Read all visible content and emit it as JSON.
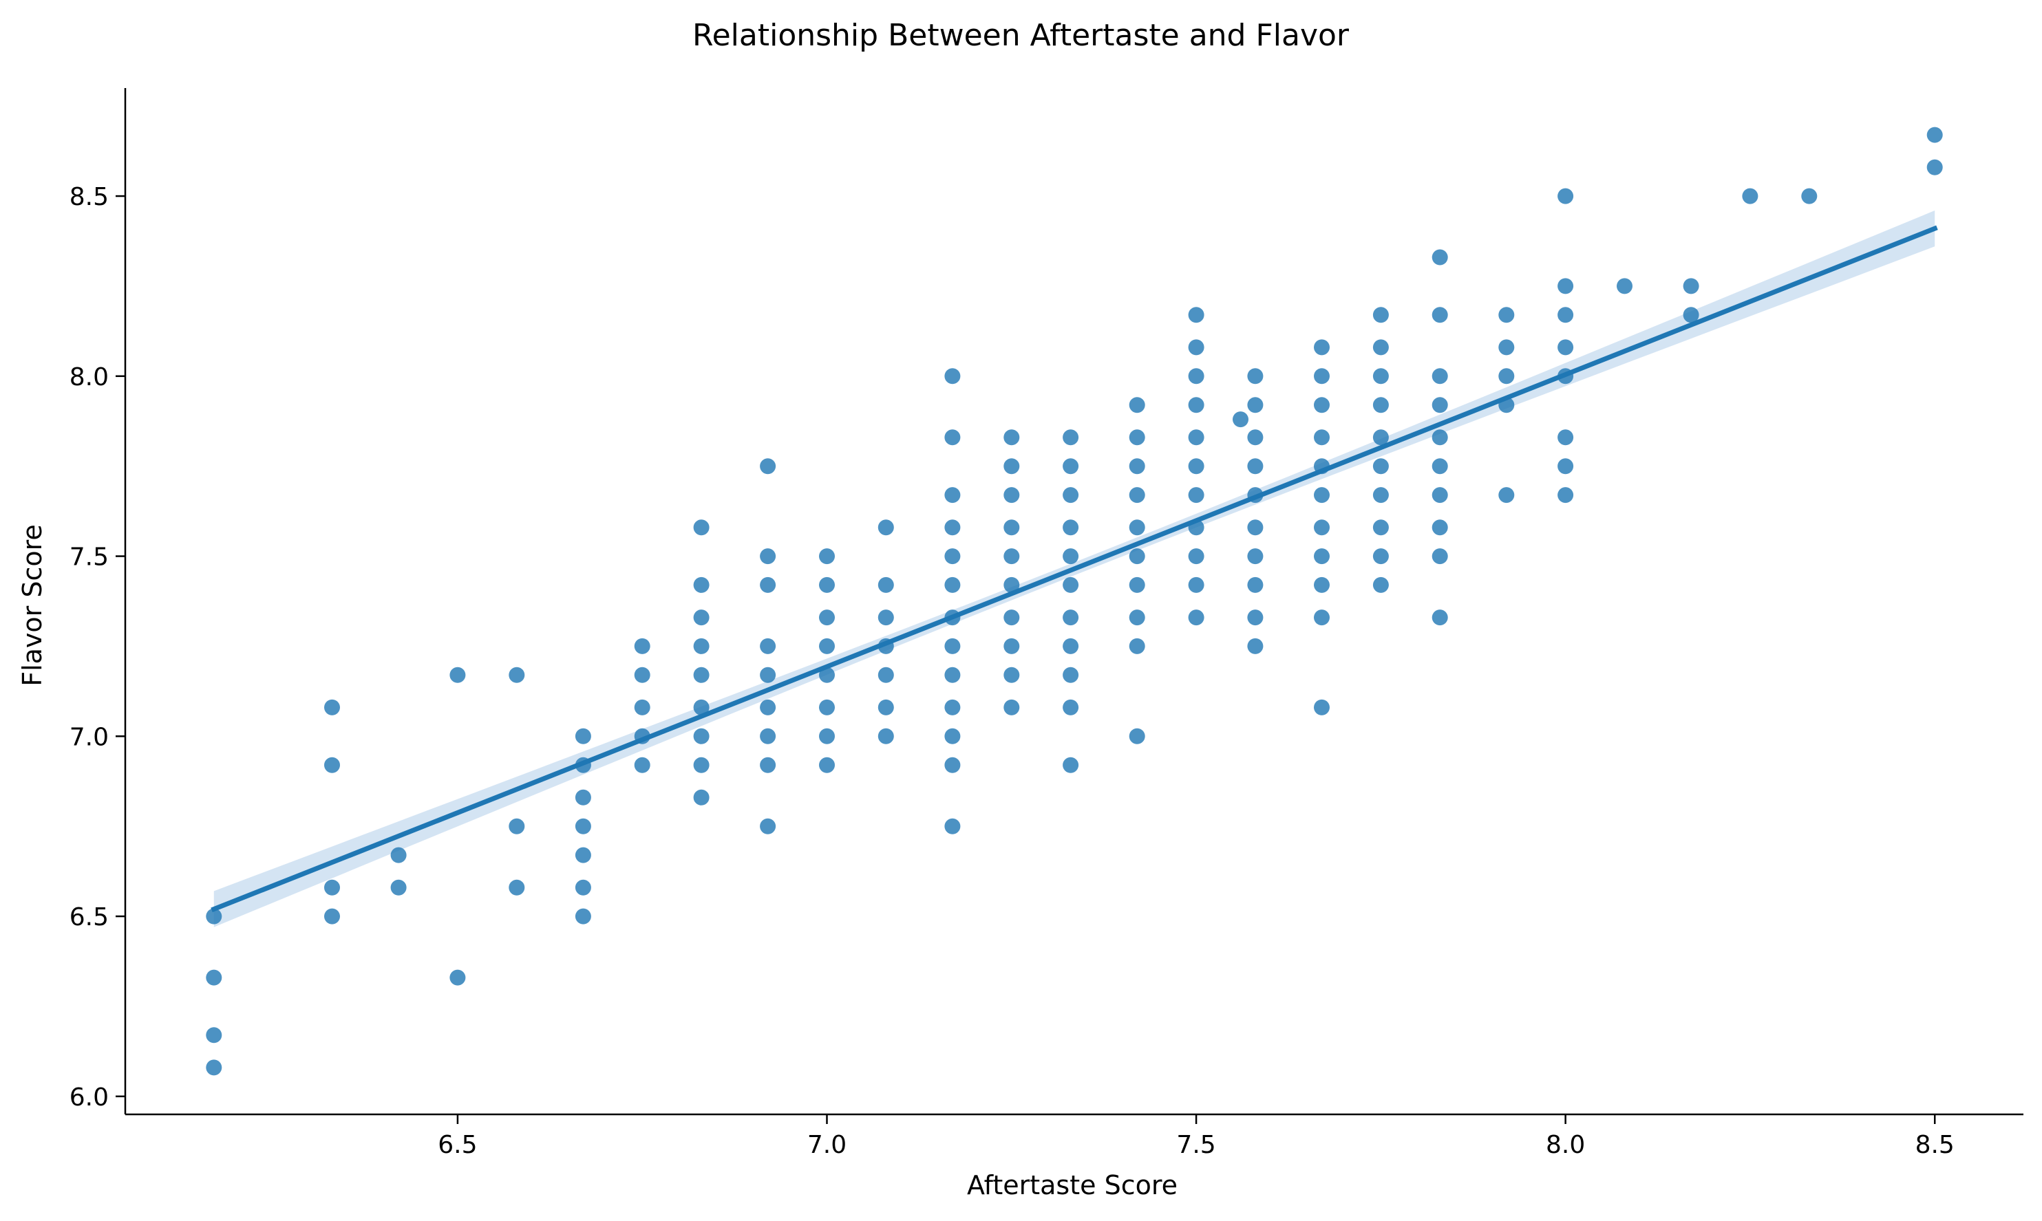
{
  "chart_data": {
    "type": "scatter",
    "title": "Relationship Between Aftertaste and Flavor",
    "xlabel": "Aftertaste Score",
    "ylabel": "Flavor Score",
    "xlim": [
      6.05,
      8.62
    ],
    "ylim": [
      5.95,
      8.8
    ],
    "xticks": [
      6.5,
      7.0,
      7.5,
      8.0,
      8.5
    ],
    "yticks": [
      6.0,
      6.5,
      7.0,
      7.5,
      8.0,
      8.5
    ],
    "xtick_labels": [
      "6.5",
      "7.0",
      "7.5",
      "8.0",
      "8.5"
    ],
    "ytick_labels": [
      "6.0",
      "6.5",
      "7.0",
      "7.5",
      "8.0",
      "8.5"
    ],
    "grid": false,
    "point_color": "#1f77b4",
    "regression": {
      "x": [
        6.17,
        8.5
      ],
      "y": [
        6.52,
        8.41
      ],
      "ci_halfwidth_ends": 0.05,
      "ci_halfwidth_center": 0.018,
      "ci_color": "#c6dbef"
    },
    "points": [
      [
        6.17,
        6.5
      ],
      [
        6.17,
        6.33
      ],
      [
        6.17,
        6.17
      ],
      [
        6.17,
        6.08
      ],
      [
        6.33,
        7.08
      ],
      [
        6.33,
        6.92
      ],
      [
        6.33,
        6.58
      ],
      [
        6.33,
        6.5
      ],
      [
        6.42,
        6.67
      ],
      [
        6.42,
        6.58
      ],
      [
        6.5,
        7.17
      ],
      [
        6.5,
        6.33
      ],
      [
        6.58,
        7.17
      ],
      [
        6.58,
        6.75
      ],
      [
        6.58,
        6.58
      ],
      [
        6.67,
        7.0
      ],
      [
        6.67,
        6.92
      ],
      [
        6.67,
        6.83
      ],
      [
        6.67,
        6.75
      ],
      [
        6.67,
        6.67
      ],
      [
        6.67,
        6.58
      ],
      [
        6.67,
        6.5
      ],
      [
        6.75,
        7.25
      ],
      [
        6.75,
        7.17
      ],
      [
        6.75,
        7.08
      ],
      [
        6.75,
        7.0
      ],
      [
        6.75,
        6.92
      ],
      [
        6.83,
        7.58
      ],
      [
        6.83,
        7.42
      ],
      [
        6.83,
        7.33
      ],
      [
        6.83,
        7.25
      ],
      [
        6.83,
        7.17
      ],
      [
        6.83,
        7.08
      ],
      [
        6.83,
        7.0
      ],
      [
        6.83,
        6.92
      ],
      [
        6.83,
        6.83
      ],
      [
        6.92,
        7.75
      ],
      [
        6.92,
        7.5
      ],
      [
        6.92,
        7.42
      ],
      [
        6.92,
        7.25
      ],
      [
        6.92,
        7.17
      ],
      [
        6.92,
        7.08
      ],
      [
        6.92,
        7.0
      ],
      [
        6.92,
        6.92
      ],
      [
        6.92,
        6.75
      ],
      [
        7.0,
        7.5
      ],
      [
        7.0,
        7.42
      ],
      [
        7.0,
        7.33
      ],
      [
        7.0,
        7.25
      ],
      [
        7.0,
        7.17
      ],
      [
        7.0,
        7.08
      ],
      [
        7.0,
        7.0
      ],
      [
        7.0,
        6.92
      ],
      [
        7.08,
        7.58
      ],
      [
        7.08,
        7.42
      ],
      [
        7.08,
        7.33
      ],
      [
        7.08,
        7.25
      ],
      [
        7.08,
        7.17
      ],
      [
        7.08,
        7.08
      ],
      [
        7.08,
        7.0
      ],
      [
        7.17,
        8.0
      ],
      [
        7.17,
        7.83
      ],
      [
        7.17,
        7.67
      ],
      [
        7.17,
        7.58
      ],
      [
        7.17,
        7.5
      ],
      [
        7.17,
        7.42
      ],
      [
        7.17,
        7.33
      ],
      [
        7.17,
        7.25
      ],
      [
        7.17,
        7.17
      ],
      [
        7.17,
        7.08
      ],
      [
        7.17,
        7.0
      ],
      [
        7.17,
        6.92
      ],
      [
        7.17,
        6.75
      ],
      [
        7.25,
        7.83
      ],
      [
        7.25,
        7.75
      ],
      [
        7.25,
        7.67
      ],
      [
        7.25,
        7.58
      ],
      [
        7.25,
        7.5
      ],
      [
        7.25,
        7.42
      ],
      [
        7.25,
        7.33
      ],
      [
        7.25,
        7.25
      ],
      [
        7.25,
        7.17
      ],
      [
        7.25,
        7.08
      ],
      [
        7.33,
        7.83
      ],
      [
        7.33,
        7.75
      ],
      [
        7.33,
        7.67
      ],
      [
        7.33,
        7.58
      ],
      [
        7.33,
        7.5
      ],
      [
        7.33,
        7.42
      ],
      [
        7.33,
        7.33
      ],
      [
        7.33,
        7.25
      ],
      [
        7.33,
        7.17
      ],
      [
        7.33,
        7.08
      ],
      [
        7.33,
        6.92
      ],
      [
        7.42,
        7.92
      ],
      [
        7.42,
        7.83
      ],
      [
        7.42,
        7.75
      ],
      [
        7.42,
        7.67
      ],
      [
        7.42,
        7.58
      ],
      [
        7.42,
        7.5
      ],
      [
        7.42,
        7.42
      ],
      [
        7.42,
        7.33
      ],
      [
        7.42,
        7.25
      ],
      [
        7.42,
        7.0
      ],
      [
        7.5,
        8.17
      ],
      [
        7.5,
        8.08
      ],
      [
        7.5,
        8.0
      ],
      [
        7.5,
        7.92
      ],
      [
        7.5,
        7.83
      ],
      [
        7.5,
        7.75
      ],
      [
        7.5,
        7.67
      ],
      [
        7.5,
        7.58
      ],
      [
        7.5,
        7.5
      ],
      [
        7.5,
        7.42
      ],
      [
        7.5,
        7.33
      ],
      [
        7.56,
        7.88
      ],
      [
        7.58,
        8.0
      ],
      [
        7.58,
        7.92
      ],
      [
        7.58,
        7.83
      ],
      [
        7.58,
        7.75
      ],
      [
        7.58,
        7.67
      ],
      [
        7.58,
        7.58
      ],
      [
        7.58,
        7.5
      ],
      [
        7.58,
        7.42
      ],
      [
        7.58,
        7.33
      ],
      [
        7.58,
        7.25
      ],
      [
        7.67,
        8.08
      ],
      [
        7.67,
        8.0
      ],
      [
        7.67,
        7.92
      ],
      [
        7.67,
        7.83
      ],
      [
        7.67,
        7.75
      ],
      [
        7.67,
        7.67
      ],
      [
        7.67,
        7.58
      ],
      [
        7.67,
        7.5
      ],
      [
        7.67,
        7.42
      ],
      [
        7.67,
        7.33
      ],
      [
        7.67,
        7.08
      ],
      [
        7.75,
        8.17
      ],
      [
        7.75,
        8.08
      ],
      [
        7.75,
        8.0
      ],
      [
        7.75,
        7.92
      ],
      [
        7.75,
        7.83
      ],
      [
        7.75,
        7.75
      ],
      [
        7.75,
        7.67
      ],
      [
        7.75,
        7.58
      ],
      [
        7.75,
        7.5
      ],
      [
        7.75,
        7.42
      ],
      [
        7.83,
        8.33
      ],
      [
        7.83,
        8.17
      ],
      [
        7.83,
        8.0
      ],
      [
        7.83,
        7.92
      ],
      [
        7.83,
        7.83
      ],
      [
        7.83,
        7.75
      ],
      [
        7.83,
        7.67
      ],
      [
        7.83,
        7.58
      ],
      [
        7.83,
        7.5
      ],
      [
        7.83,
        7.33
      ],
      [
        7.92,
        8.17
      ],
      [
        7.92,
        8.08
      ],
      [
        7.92,
        8.0
      ],
      [
        7.92,
        7.92
      ],
      [
        7.92,
        7.67
      ],
      [
        8.0,
        8.5
      ],
      [
        8.0,
        8.25
      ],
      [
        8.0,
        8.17
      ],
      [
        8.0,
        8.08
      ],
      [
        8.0,
        8.0
      ],
      [
        8.0,
        7.83
      ],
      [
        8.0,
        7.75
      ],
      [
        8.0,
        7.67
      ],
      [
        8.08,
        8.25
      ],
      [
        8.17,
        8.25
      ],
      [
        8.17,
        8.17
      ],
      [
        8.25,
        8.5
      ],
      [
        8.33,
        8.5
      ],
      [
        8.5,
        8.67
      ],
      [
        8.5,
        8.58
      ]
    ]
  }
}
